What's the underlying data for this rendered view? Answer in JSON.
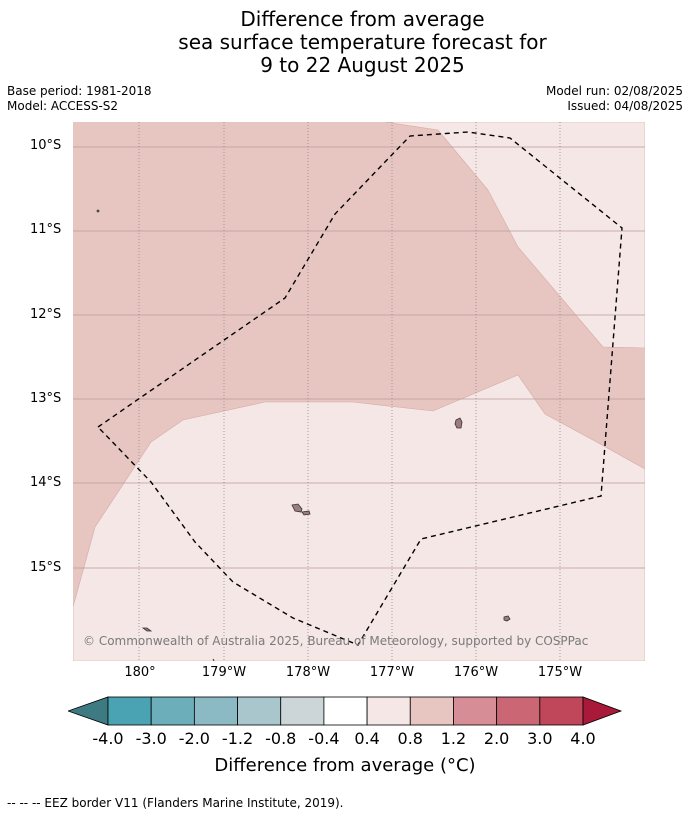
{
  "title_lines": [
    "Difference from average",
    "sea surface temperature forecast for",
    "9 to 22 August 2025"
  ],
  "base_period": "Base period: 1981-2018",
  "model": "Model: ACCESS-S2",
  "model_run": "Model run: 02/08/2025",
  "issued": "Issued: 04/08/2025",
  "map": {
    "lat_labels": [
      "10°S",
      "11°S",
      "12°S",
      "13°S",
      "14°S",
      "15°S"
    ],
    "lon_labels": [
      "180°",
      "179°W",
      "178°W",
      "177°W",
      "176°W",
      "175°W"
    ],
    "copyright": "© Commonwealth of Australia 2025, Bureau of Meteorology, supported by COSPPac",
    "regions": [
      {
        "name": "anomaly 0.8 to 1.2",
        "color": "#e7c6c1"
      },
      {
        "name": "anomaly 0.4 to 0.8",
        "color": "#f4e7e5"
      }
    ]
  },
  "colorbar": {
    "title": "Difference from average (°C)",
    "ticks": [
      "-4.0",
      "-3.0",
      "-2.0",
      "-1.2",
      "-0.8",
      "-0.4",
      "0.4",
      "0.8",
      "1.2",
      "2.0",
      "3.0",
      "4.0"
    ],
    "colors": [
      "#3d7a82",
      "#4aa3b3",
      "#6caeb9",
      "#8cbac4",
      "#a9c6cc",
      "#ccd6d8",
      "#ffffff",
      "#f4e7e5",
      "#e7c6c1",
      "#d68d95",
      "#cb6775",
      "#c0465a",
      "#a8193a"
    ]
  },
  "legend_text": "--  --  -- EEZ border V11 (Flanders Marine Institute, 2019)."
}
